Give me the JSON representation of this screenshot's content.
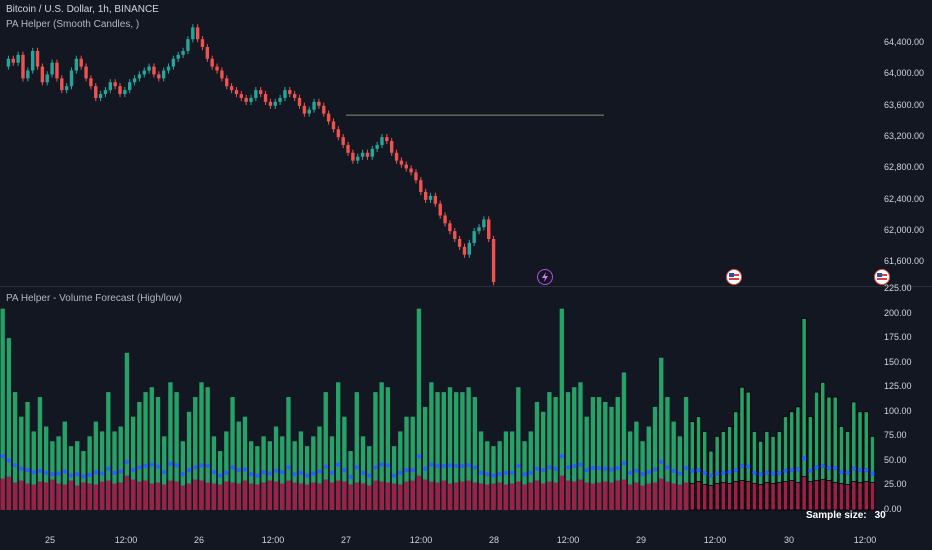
{
  "header": {
    "symbol_line": "Bitcoin / U.S. Dollar, 1h, BINANCE",
    "indicator_line": "PA Helper (Smooth Candles, )"
  },
  "volume_pane": {
    "title": "PA Helper - Volume Forecast (High/low)",
    "sample_label": "Sample size:",
    "sample_value": "30"
  },
  "colors": {
    "background": "#131722",
    "candle_up": "#26a69a",
    "candle_down": "#ef5350",
    "volume_up": "#26a269",
    "volume_low": "#9c2149",
    "forecast_dot": "#2962ff",
    "level_line": "#8d8a6a"
  },
  "icons": [
    "lightning-event-icon",
    "us-flag-event-icon",
    "us-flag-event-icon"
  ],
  "chart_data": [
    {
      "type": "candlestick",
      "title": "Bitcoin / U.S. Dollar, 1h, BINANCE",
      "y_ticks": [
        "64,400.00",
        "64,000.00",
        "63,600.00",
        "63,200.00",
        "62,800.00",
        "62,400.00",
        "62,000.00",
        "61,600.00"
      ],
      "y_tick_values": [
        64400,
        64000,
        63600,
        63200,
        62800,
        62400,
        62000,
        61600
      ],
      "ylim": [
        61300,
        64950
      ],
      "x_tick_labels": [
        "25",
        "12:00",
        "26",
        "12:00",
        "27",
        "12:00",
        "28",
        "12:00",
        "29",
        "12:00",
        "30",
        "12:00"
      ],
      "horizontal_level": 63480,
      "closes": [
        64200,
        64150,
        64250,
        63950,
        64050,
        64300,
        64100,
        63900,
        64000,
        64150,
        63950,
        63800,
        63850,
        64050,
        64200,
        64100,
        63950,
        63850,
        63700,
        63750,
        63800,
        63900,
        63850,
        63750,
        63800,
        63900,
        63950,
        64000,
        64050,
        64100,
        64000,
        63950,
        64050,
        64100,
        64200,
        64250,
        64300,
        64450,
        64600,
        64450,
        64350,
        64200,
        64100,
        64050,
        63950,
        63850,
        63800,
        63750,
        63700,
        63650,
        63700,
        63800,
        63750,
        63650,
        63600,
        63650,
        63700,
        63800,
        63750,
        63700,
        63600,
        63500,
        63550,
        63650,
        63600,
        63500,
        63400,
        63300,
        63200,
        63100,
        63000,
        62900,
        62950,
        63000,
        62950,
        63050,
        63100,
        63200,
        63150,
        63000,
        62900,
        62850,
        62800,
        62750,
        62650,
        62500,
        62400,
        62450,
        62350,
        62200,
        62100,
        62000,
        61900,
        61800,
        61700,
        61850,
        62000,
        62050,
        62150,
        61900,
        61350
      ],
      "opens": [
        64100,
        64200,
        64150,
        64250,
        63950,
        64050,
        64300,
        64100,
        63900,
        64000,
        64150,
        63950,
        63800,
        63850,
        64050,
        64200,
        64100,
        63950,
        63850,
        63700,
        63750,
        63800,
        63900,
        63850,
        63750,
        63800,
        63900,
        63950,
        64000,
        64050,
        64100,
        64000,
        63950,
        64050,
        64100,
        64200,
        64250,
        64300,
        64450,
        64600,
        64450,
        64350,
        64200,
        64100,
        64050,
        63950,
        63850,
        63800,
        63750,
        63700,
        63650,
        63700,
        63800,
        63750,
        63650,
        63600,
        63650,
        63700,
        63800,
        63750,
        63700,
        63600,
        63500,
        63550,
        63650,
        63600,
        63500,
        63400,
        63300,
        63200,
        63100,
        63000,
        62900,
        62950,
        63000,
        62950,
        63050,
        63100,
        63200,
        63150,
        63000,
        62900,
        62850,
        62800,
        62750,
        62650,
        62500,
        62400,
        62450,
        62350,
        62200,
        62100,
        62000,
        61900,
        61800,
        61700,
        61850,
        62000,
        62050,
        62150,
        61900
      ]
    },
    {
      "type": "bar",
      "title": "PA Helper - Volume Forecast (High/low)",
      "y_ticks": [
        "225.00",
        "200.00",
        "175.00",
        "150.00",
        "125.00",
        "100.00",
        "75.00",
        "50.00",
        "25.00",
        "0.00"
      ],
      "y_tick_values": [
        225,
        200,
        175,
        150,
        125,
        100,
        75,
        50,
        25,
        0
      ],
      "ylim": [
        0,
        225
      ],
      "sample_size": 30,
      "volume_high": [
        205,
        175,
        120,
        95,
        110,
        80,
        115,
        85,
        70,
        75,
        90,
        65,
        70,
        60,
        75,
        90,
        80,
        120,
        80,
        85,
        160,
        95,
        110,
        120,
        125,
        115,
        75,
        130,
        120,
        70,
        100,
        115,
        130,
        125,
        75,
        60,
        80,
        115,
        90,
        95,
        70,
        65,
        75,
        70,
        85,
        75,
        115,
        70,
        80,
        65,
        75,
        85,
        120,
        75,
        130,
        95,
        60,
        120,
        75,
        65,
        120,
        130,
        125,
        65,
        80,
        95,
        95,
        205,
        105,
        130,
        120,
        120,
        125,
        120,
        120,
        125,
        115,
        80,
        70,
        65,
        70,
        80,
        80,
        125,
        70,
        80,
        110,
        100,
        120,
        115,
        205,
        120,
        125,
        130,
        95,
        115,
        115,
        110,
        105,
        115,
        140,
        80,
        90,
        70,
        85,
        105,
        155,
        115,
        90,
        75,
        115,
        90,
        95,
        80,
        60,
        75,
        80,
        85,
        100,
        125,
        120,
        80,
        70,
        80,
        75,
        80,
        95,
        100,
        105,
        195,
        95,
        120,
        130,
        115,
        115,
        85,
        80,
        110,
        100,
        100,
        75
      ],
      "volume_low": [
        32,
        34,
        28,
        30,
        27,
        26,
        29,
        28,
        31,
        27,
        26,
        30,
        25,
        28,
        27,
        26,
        29,
        30,
        27,
        28,
        35,
        31,
        29,
        30,
        27,
        28,
        26,
        30,
        29,
        25,
        27,
        31,
        30,
        28,
        27,
        26,
        29,
        28,
        27,
        30,
        27,
        26,
        28,
        30,
        29,
        27,
        30,
        28,
        27,
        26,
        28,
        27,
        31,
        28,
        30,
        29,
        26,
        28,
        27,
        25,
        30,
        29,
        28,
        27,
        26,
        29,
        30,
        35,
        31,
        29,
        28,
        30,
        27,
        28,
        29,
        30,
        28,
        27,
        26,
        27,
        28,
        26,
        27,
        29,
        26,
        28,
        30,
        27,
        29,
        28,
        35,
        30,
        29,
        31,
        28,
        27,
        28,
        29,
        28,
        30,
        31,
        26,
        28,
        25,
        27,
        28,
        32,
        29,
        27,
        26,
        28,
        27,
        29,
        26,
        25,
        27,
        28,
        27,
        29,
        30,
        29,
        27,
        26,
        28,
        27,
        28,
        29,
        30,
        28,
        34,
        29,
        30,
        31,
        30,
        28,
        27,
        26,
        29,
        28,
        29,
        28
      ],
      "forecast": [
        78,
        72,
        65,
        60,
        58,
        55,
        57,
        54,
        52,
        53,
        56,
        50,
        52,
        49,
        51,
        55,
        53,
        60,
        54,
        56,
        70,
        58,
        62,
        64,
        66,
        63,
        55,
        67,
        65,
        52,
        58,
        62,
        65,
        64,
        55,
        50,
        54,
        62,
        58,
        59,
        52,
        50,
        55,
        53,
        57,
        55,
        62,
        52,
        54,
        50,
        53,
        56,
        63,
        54,
        66,
        58,
        48,
        62,
        54,
        50,
        62,
        66,
        65,
        50,
        54,
        58,
        58,
        78,
        60,
        66,
        64,
        64,
        65,
        64,
        64,
        65,
        62,
        54,
        52,
        50,
        52,
        54,
        54,
        64,
        52,
        54,
        60,
        58,
        62,
        60,
        78,
        62,
        64,
        66,
        58,
        61,
        61,
        60,
        59,
        61,
        68,
        54,
        57,
        52,
        55,
        59,
        70,
        62,
        57,
        53,
        61,
        57,
        58,
        54,
        50,
        53,
        54,
        55,
        58,
        64,
        63,
        54,
        52,
        54,
        53,
        54,
        57,
        58,
        59,
        75,
        57,
        62,
        64,
        61,
        61,
        55,
        54,
        60,
        58,
        58,
        53
      ]
    }
  ]
}
